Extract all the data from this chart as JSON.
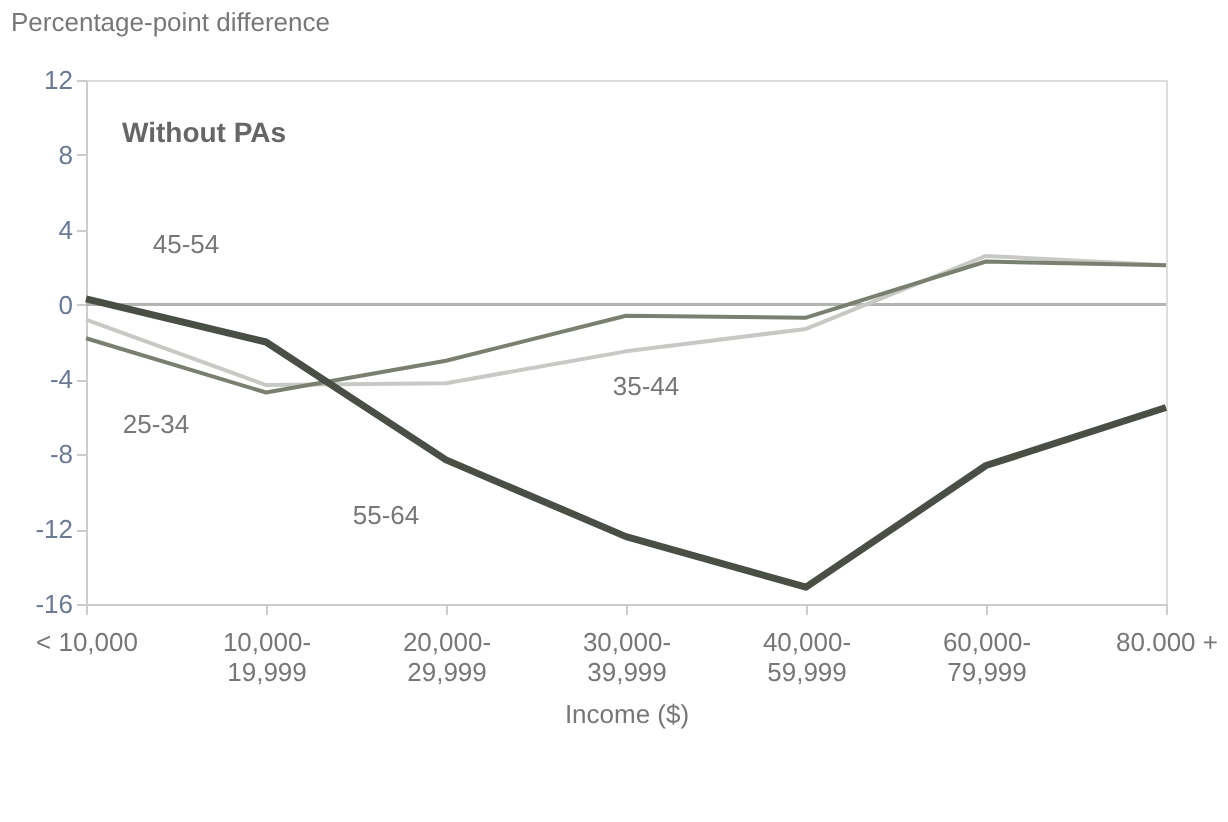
{
  "chart_data": {
    "type": "line",
    "title": "Without PAs",
    "xlabel": "Income ($)",
    "ylabel": "Percentage-point difference",
    "categories": [
      "< 10,000",
      "10,000-19,999",
      "20,000-29,999",
      "30,000-39,999",
      "40,000-59,999",
      "60,000-79,999",
      "80.000 +"
    ],
    "series": [
      {
        "name": "45-54",
        "color": "#b4b4b0",
        "values": [
          0,
          0,
          0,
          0,
          0,
          0,
          0
        ]
      },
      {
        "name": "35-44",
        "color": "#c8c8c4",
        "values": [
          -0.8,
          -4.3,
          -4.2,
          -2.5,
          -1.3,
          2.6,
          2.1
        ]
      },
      {
        "name": "25-34",
        "color": "#7a8070",
        "values": [
          -1.8,
          -4.7,
          -3,
          -0.6,
          -0.7,
          2.3,
          2.1
        ]
      },
      {
        "name": "55-64",
        "color": "#4a4f45",
        "values": [
          0.3,
          -2,
          -8.3,
          -12.4,
          -15.1,
          -8.6,
          -5.5
        ]
      }
    ],
    "ylim": [
      -16,
      12
    ],
    "yticks": [
      -16,
      -12,
      -8,
      -4,
      0,
      4,
      8,
      12
    ],
    "grid": false,
    "legend": false,
    "marker": "none",
    "line_style": "solid"
  }
}
